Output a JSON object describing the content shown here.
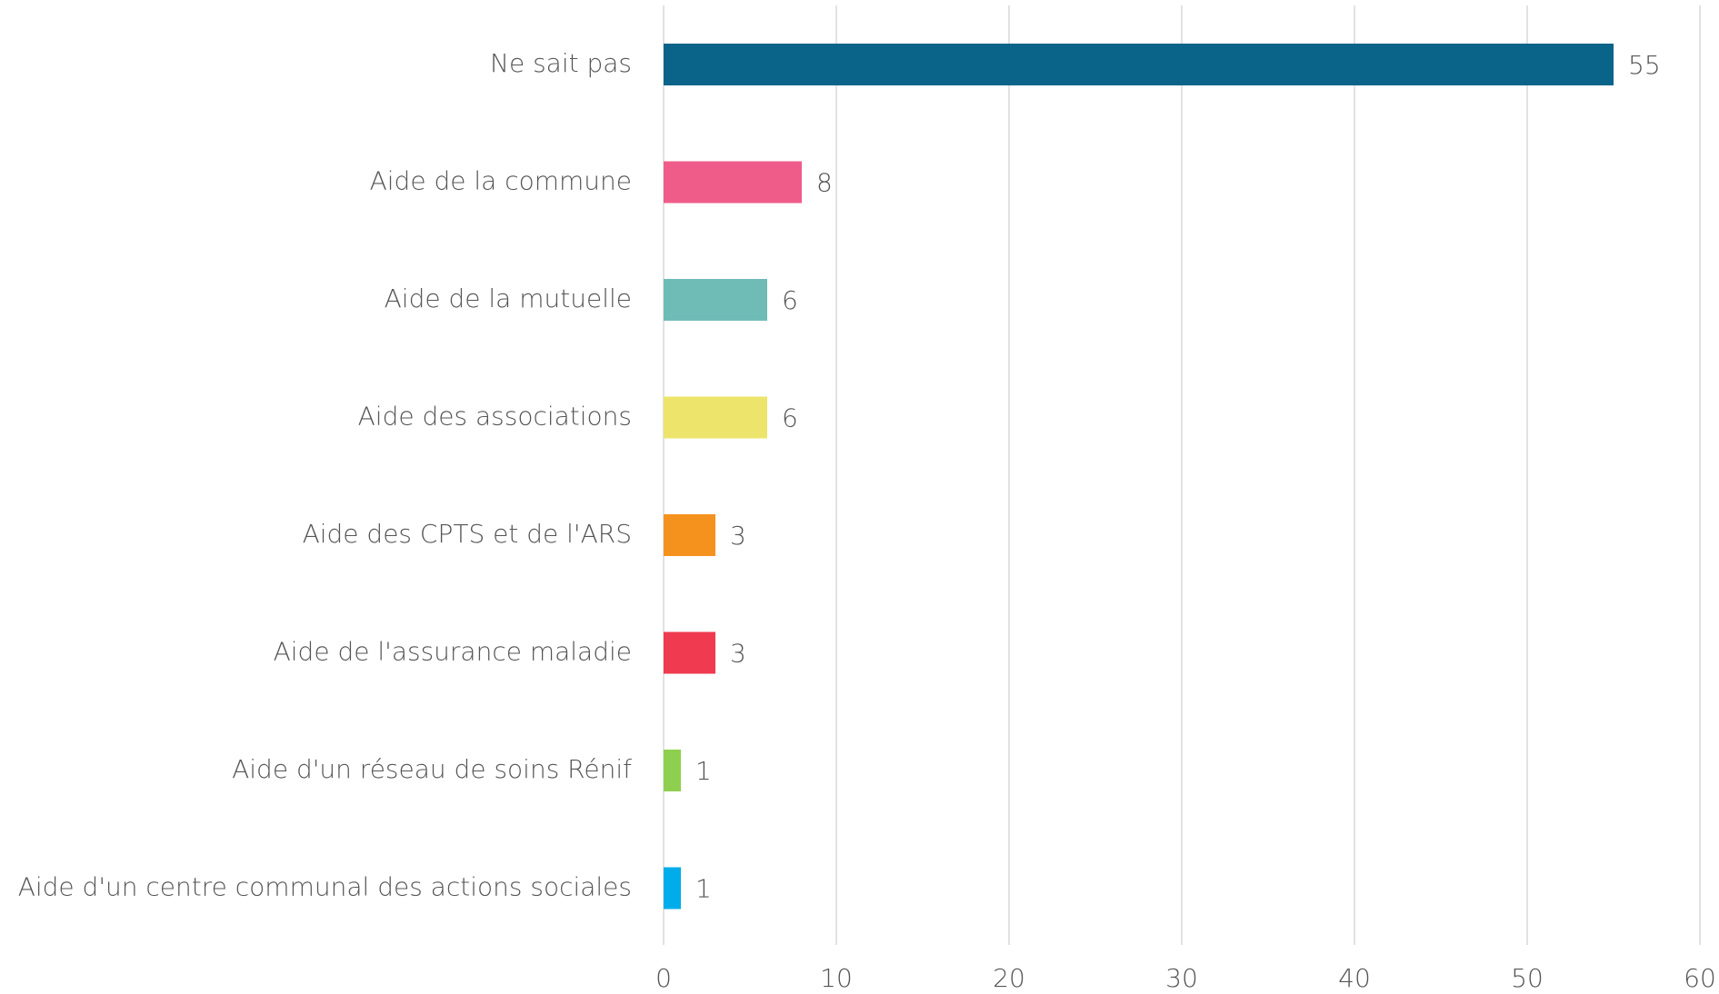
{
  "chart_data": {
    "type": "hbar",
    "categories": [
      "Ne sait pas",
      "Aide de la commune",
      "Aide de la mutuelle",
      "Aide des associations",
      "Aide des CPTS et de l'ARS",
      "Aide de l'assurance maladie",
      "Aide d'un réseau de soins Rénif",
      "Aide d'un centre communal des actions sociales"
    ],
    "values": [
      55,
      8,
      6,
      6,
      3,
      3,
      1,
      1
    ],
    "colors": [
      "#0a6389",
      "#f05c8a",
      "#6fbcb7",
      "#ece46b",
      "#f5921e",
      "#ef3a4f",
      "#8fcf4f",
      "#00adeb"
    ],
    "xlim": [
      0,
      60
    ],
    "xticks": [
      0,
      10,
      20,
      30,
      40,
      50,
      60
    ],
    "grid": true
  }
}
